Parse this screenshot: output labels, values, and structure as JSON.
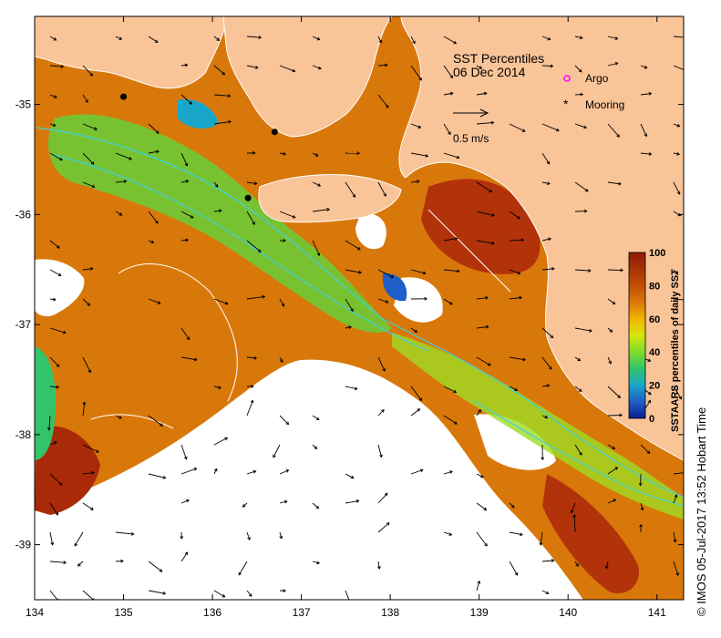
{
  "map": {
    "title": "SST Percentiles",
    "date": "06 Dec 2014",
    "lon_range": [
      134,
      141.3
    ],
    "lat_range": [
      -39.5,
      -34.2
    ],
    "x_ticks": [
      "134",
      "135",
      "136",
      "137",
      "138",
      "139",
      "140",
      "141"
    ],
    "x_tick_values": [
      134,
      135,
      136,
      137,
      138,
      139,
      140,
      141
    ],
    "y_ticks": [
      "-35",
      "-36",
      "-37",
      "-38",
      "-39"
    ],
    "y_tick_values": [
      -35,
      -36,
      -37,
      -38,
      -39
    ],
    "legend": {
      "argo_label": "Argo",
      "mooring_label": "Mooring",
      "vector_scale_label": "0.5 m/s",
      "argo_color": "#ff00ff",
      "mooring_color": "#000000"
    },
    "colorbar": {
      "label": "SSTAARS percentiles of daily  SST",
      "ticks": [
        "100",
        "80",
        "60",
        "40",
        "20",
        "0"
      ],
      "tick_values": [
        100,
        80,
        60,
        40,
        20,
        0
      ],
      "colors": [
        "#0a1a8c",
        "#1f5fc8",
        "#19a6c8",
        "#33c46a",
        "#7fdc2a",
        "#d6e60a",
        "#f3b400",
        "#d9780a",
        "#c24d05",
        "#8c1a05"
      ]
    },
    "credit": "©  IMOS 05-Jul-2017 13:52 Hobart Time",
    "moorings": [
      {
        "lon": 135.0,
        "lat": -34.93
      },
      {
        "lon": 136.7,
        "lat": -35.25
      },
      {
        "lon": 136.4,
        "lat": -35.85
      }
    ],
    "land_color": "#f9c498",
    "nodata_color": "#ffffff"
  }
}
